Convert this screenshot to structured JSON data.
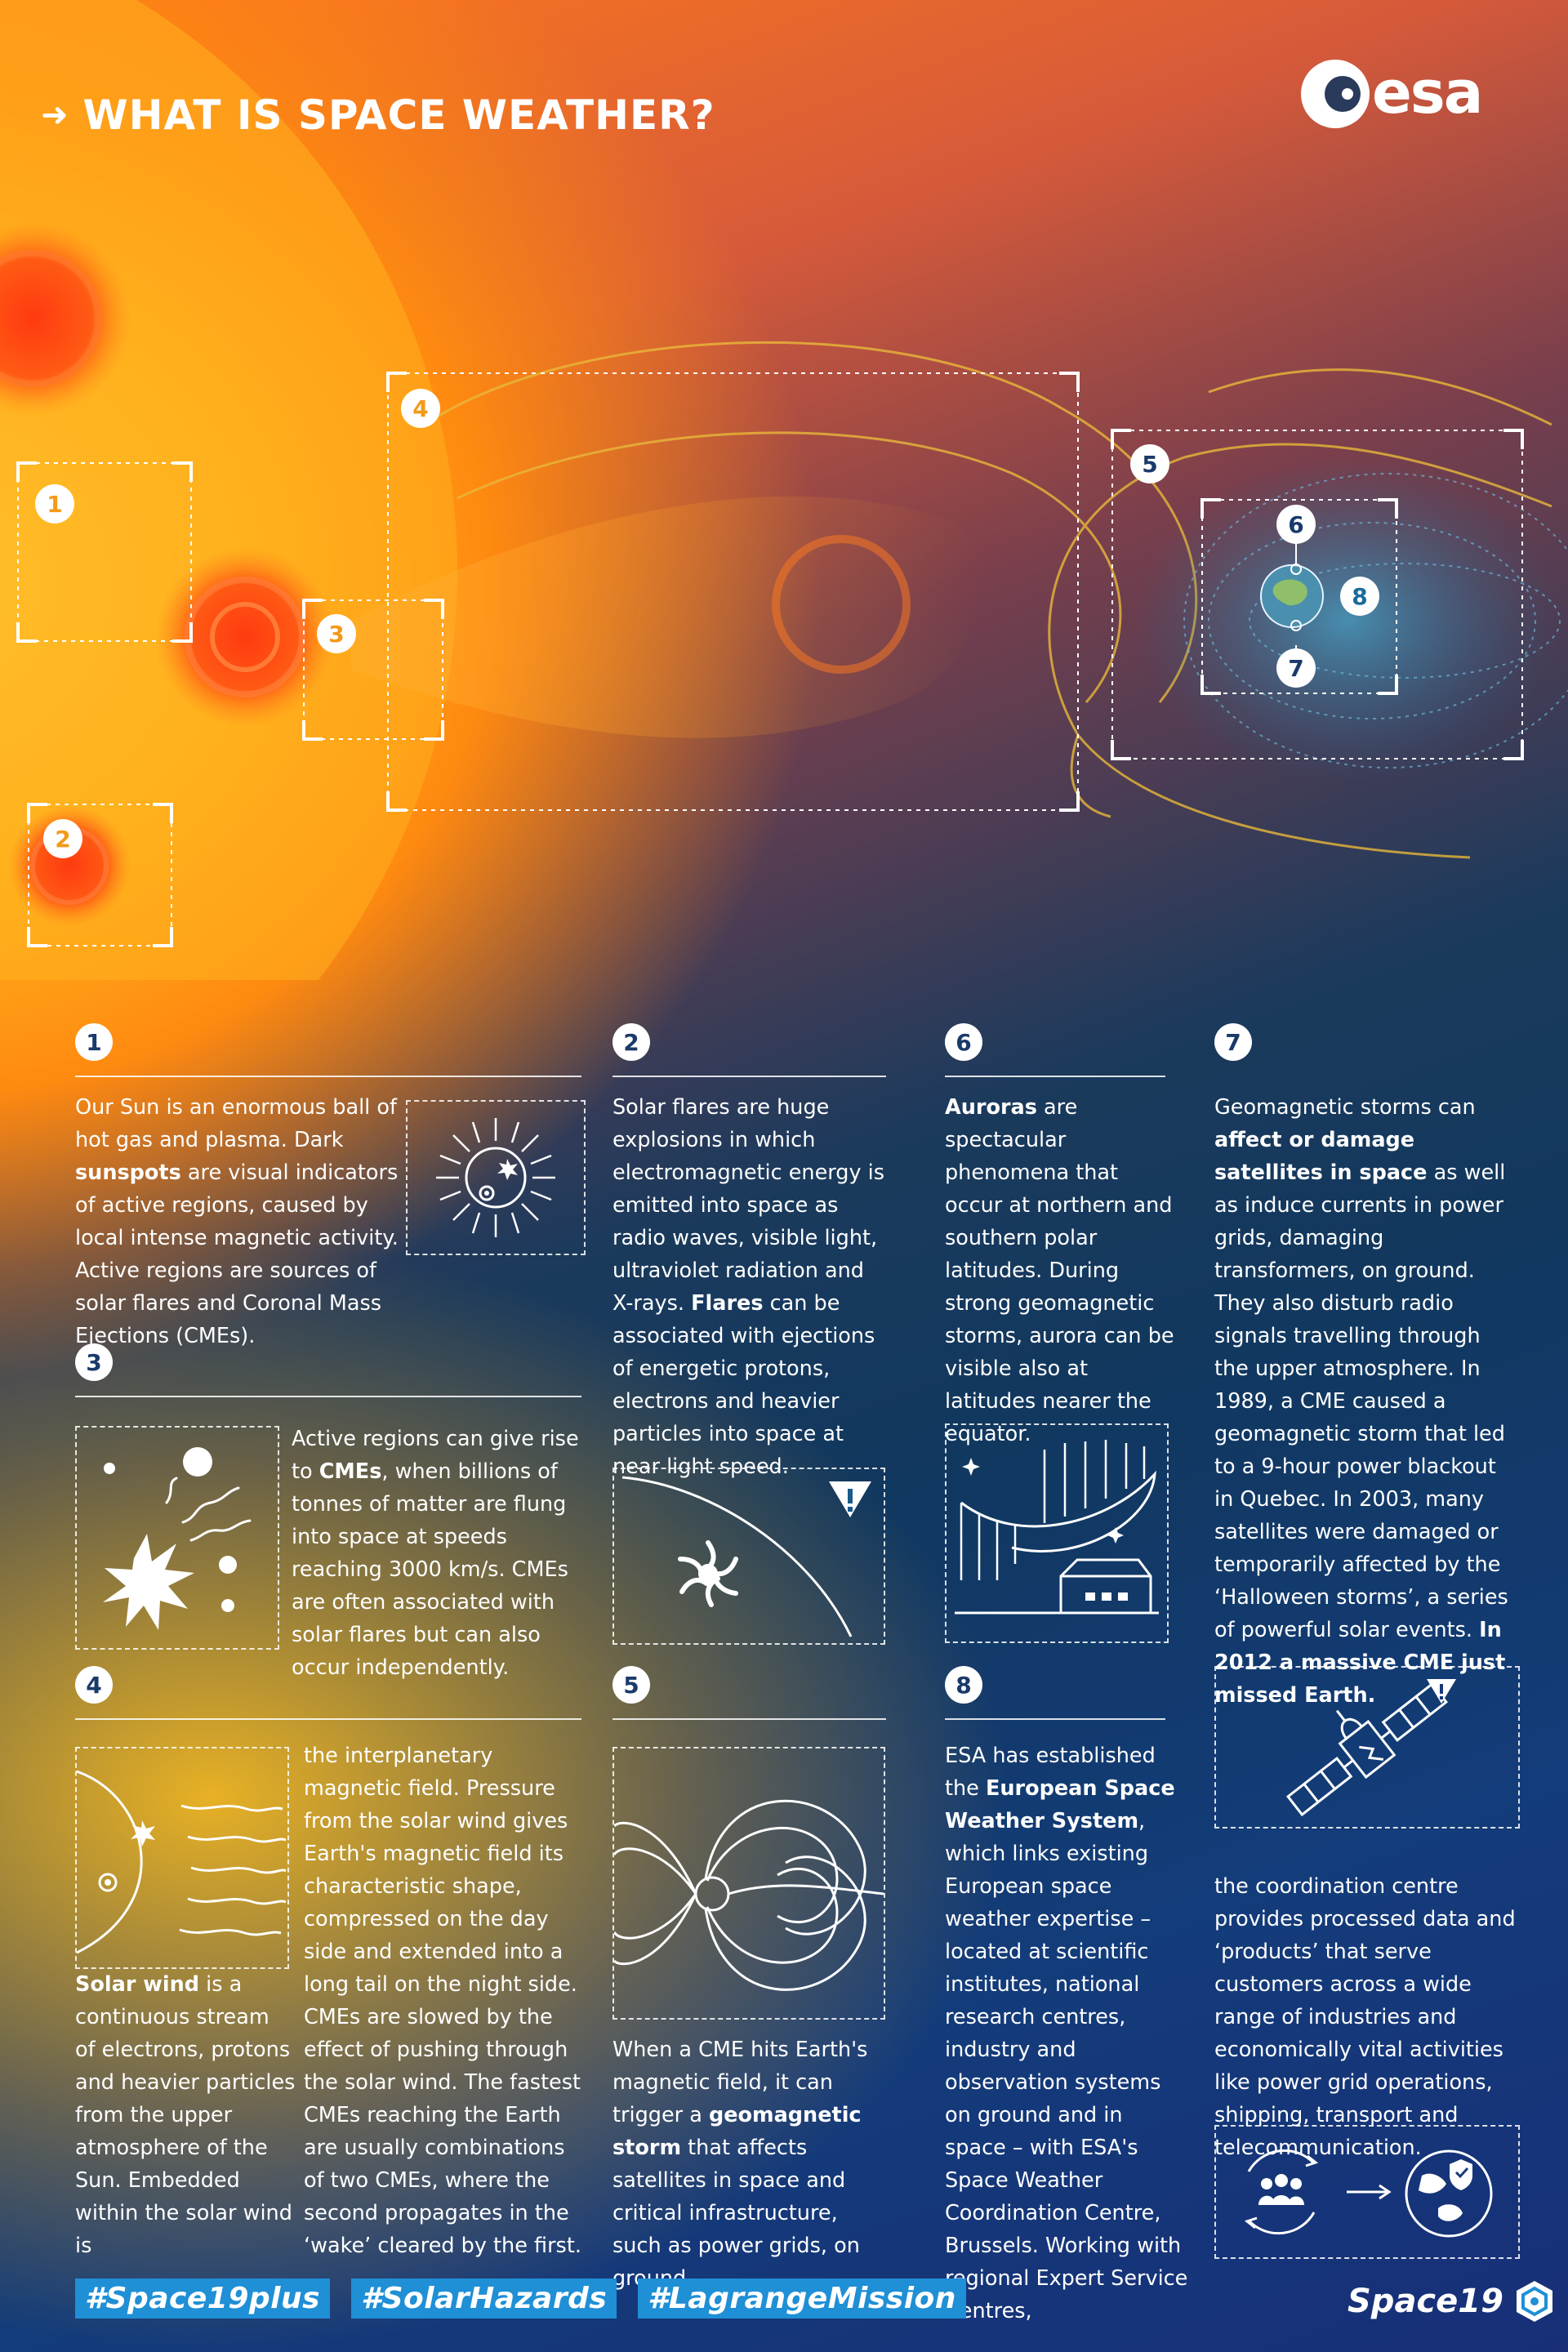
{
  "header": {
    "arrow": "➜",
    "title": "WHAT IS SPACE WEATHER?",
    "logo_text": "esa"
  },
  "diagram": {
    "labels": [
      "1",
      "2",
      "3",
      "4",
      "5",
      "6",
      "7",
      "8"
    ]
  },
  "sections": {
    "s1": {
      "num": "1",
      "text_html": "Our Sun is an enormous ball of hot gas and plasma. Dark <b>sunspots</b> are visual indicators of active regions, caused by local intense magnetic activity. Active regions are sources of solar flares and Coronal Mass Ejections (CMEs)."
    },
    "s2": {
      "num": "2",
      "text_html": "Solar flares are huge explosions in which electromagnetic energy is emitted into space as radio waves, visible light, ultraviolet radiation and X-rays. <b>Flares</b> can be associated with ejections of energetic protons, electrons and heavier particles into space at near light speed."
    },
    "s3": {
      "num": "3",
      "text_html": "Active regions can give rise to <b>CMEs</b>, when billions of tonnes of matter are flung into space at speeds reaching 3000 km/s. CMEs are often associated with solar flares but can also occur independently."
    },
    "s4": {
      "num": "4",
      "text_a_html": "<b>Solar wind</b> is a continuous stream of electrons, protons and heavier particles from the upper atmosphere of the Sun. Embedded within the solar wind is",
      "text_b_html": "the interplanetary magnetic field. Pressure from the solar wind gives Earth's magnetic field its characteristic shape, compressed on the day side and extended into a long tail on the night side. CMEs are slowed by the effect of pushing through the solar wind. The fastest CMEs reaching the Earth are usually combinations of two CMEs, where the second propagates in the ‘wake’ cleared by the first."
    },
    "s5": {
      "num": "5",
      "text_html": "When a CME hits Earth's magnetic field, it can trigger a <b>geomagnetic storm</b> that affects satellites in space and critical infrastructure, such as power grids, on ground."
    },
    "s6": {
      "num": "6",
      "text_html": "<b>Auroras</b> are spectacular phenomena that occur at northern and southern polar latitudes. During strong geomagnetic storms, aurora can be visible also at latitudes nearer the equator."
    },
    "s7": {
      "num": "7",
      "text_html": "Geomagnetic storms can <b>affect or damage satellites in space</b> as well as induce currents in power grids, damaging transformers, on ground. They also disturb radio signals travelling through the upper atmosphere. In 1989, a CME caused a geomagnetic storm that led to a 9-hour power blackout in Quebec. In 2003, many satellites were damaged or temporarily affected by the ‘Halloween storms’, a series of powerful solar events. <b>In 2012 a massive CME just missed Earth.</b>"
    },
    "s8": {
      "num": "8",
      "text_html": "ESA has established the <b>European Space Weather System</b>, which links existing European space weather expertise – located at scientific institutes, national research centres, industry and observation systems on ground and in space – with ESA's Space Weather Coordination Centre, Brussels. Working with regional Expert Service Centres,"
    },
    "s8b": {
      "text_html": "the coordination centre provides processed data and ‘products’ that serve customers across a wide range of industries and economically vital activities like power grid operations, shipping, transport and telecommunication."
    }
  },
  "footer": {
    "tags": [
      "#Space19plus",
      "#SolarHazards",
      "#LagrangeMission"
    ],
    "brand": "Space19"
  }
}
